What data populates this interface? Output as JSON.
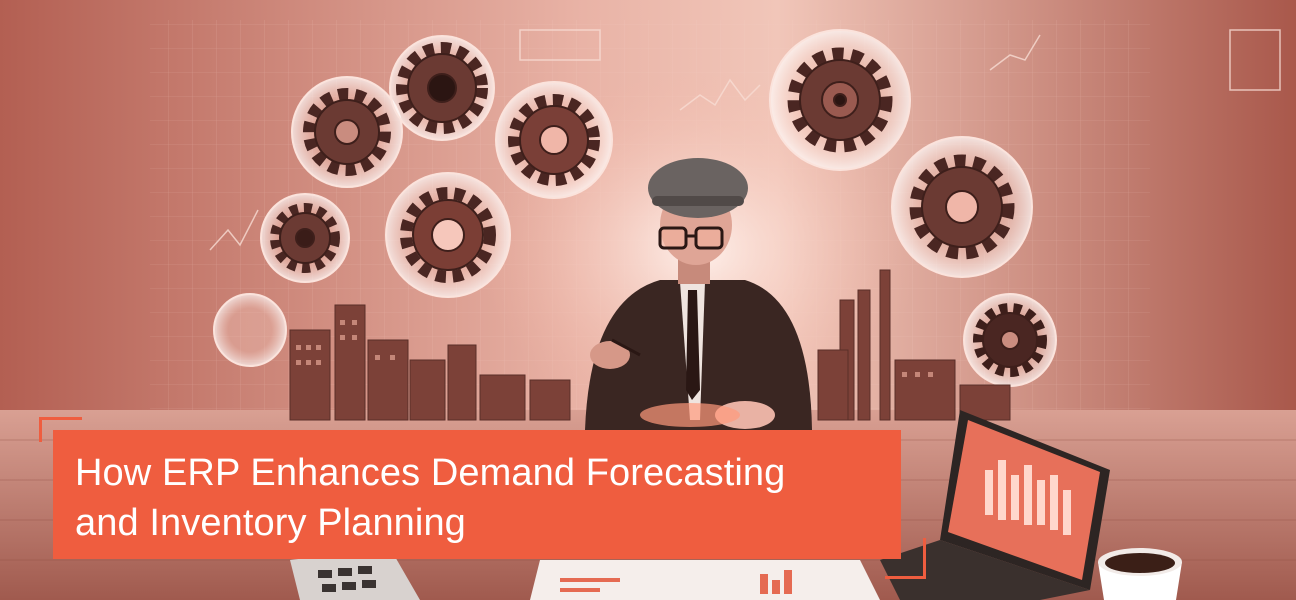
{
  "banner": {
    "title_line_1": "How ERP Enhances Demand Forecasting",
    "title_line_2": "and Inventory Planning"
  },
  "colors": {
    "accent": "#ef5d3f",
    "background": "#b8675a",
    "title_text": "#ffffff"
  }
}
